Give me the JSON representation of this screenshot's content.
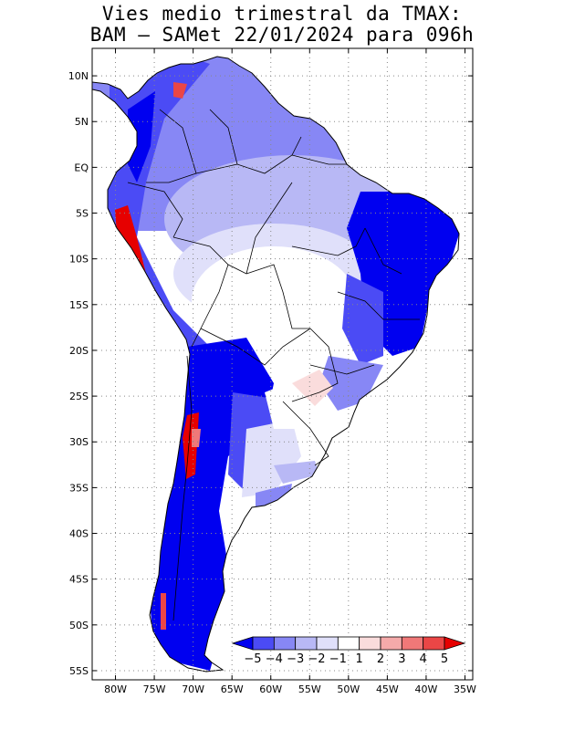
{
  "title_line1": "Vies medio trimestral da TMAX:",
  "title_line2": "BAM – SAMet 22/01/2024  para 096h",
  "map": {
    "lon_range": [
      -83,
      -34
    ],
    "lat_range": [
      -56,
      13
    ],
    "lon_ticks": [
      {
        "value": -80,
        "label": "80W"
      },
      {
        "value": -75,
        "label": "75W"
      },
      {
        "value": -70,
        "label": "70W"
      },
      {
        "value": -65,
        "label": "65W"
      },
      {
        "value": -60,
        "label": "60W"
      },
      {
        "value": -55,
        "label": "55W"
      },
      {
        "value": -50,
        "label": "50W"
      },
      {
        "value": -45,
        "label": "45W"
      },
      {
        "value": -40,
        "label": "40W"
      },
      {
        "value": -35,
        "label": "35W"
      }
    ],
    "lat_ticks": [
      {
        "value": 10,
        "label": "10N"
      },
      {
        "value": 5,
        "label": "5N"
      },
      {
        "value": 0,
        "label": "EQ"
      },
      {
        "value": -5,
        "label": "5S"
      },
      {
        "value": -10,
        "label": "10S"
      },
      {
        "value": -15,
        "label": "15S"
      },
      {
        "value": -20,
        "label": "20S"
      },
      {
        "value": -25,
        "label": "25S"
      },
      {
        "value": -30,
        "label": "30S"
      },
      {
        "value": -35,
        "label": "35S"
      },
      {
        "value": -40,
        "label": "40S"
      },
      {
        "value": -45,
        "label": "45S"
      },
      {
        "value": -50,
        "label": "50S"
      },
      {
        "value": -55,
        "label": "55S"
      }
    ],
    "grid": "dotted"
  },
  "colorbar": {
    "labels": [
      "−5",
      "−4",
      "−3",
      "−2",
      "−1",
      "1",
      "2",
      "3",
      "4",
      "5"
    ],
    "colors": [
      "#0000f0",
      "#4b4bf5",
      "#8787f5",
      "#b8b8f5",
      "#e0e0fa",
      "#ffffff",
      "#fadcdc",
      "#f5aaaa",
      "#f07878",
      "#eb4646",
      "#e60000"
    ],
    "extend": "both"
  }
}
